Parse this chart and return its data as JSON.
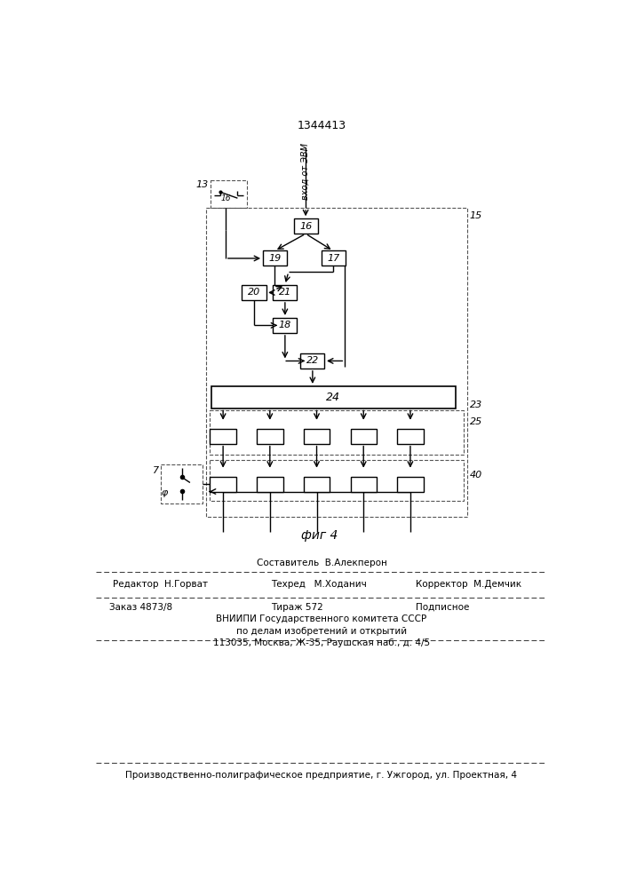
{
  "title": "1344413",
  "fig4_label": "фиг 4",
  "bg_color": "#ffffff",
  "line_color": "#000000",
  "dashed_color": "#555555",
  "patent_info": {
    "composer": "Составитель  В.Алекперон",
    "editor": "Редактор  Н.Горват",
    "techred": "Техред   М.Ходанич",
    "corrector": "Корректор  М.Демчик",
    "order": "Заказ 4873/8",
    "circulation": "Тираж 572",
    "subscription": "Подписное",
    "vnipi": "ВНИИПИ Государственного комитета СССР",
    "affairs": "по делам изобретений и открытий",
    "address": "113035, Москва, Ж-35, Раушская наб., д. 4/5",
    "production": "Производственно-полиграфическое предприятие, г. Ужгород, ул. Проектная, 4"
  }
}
